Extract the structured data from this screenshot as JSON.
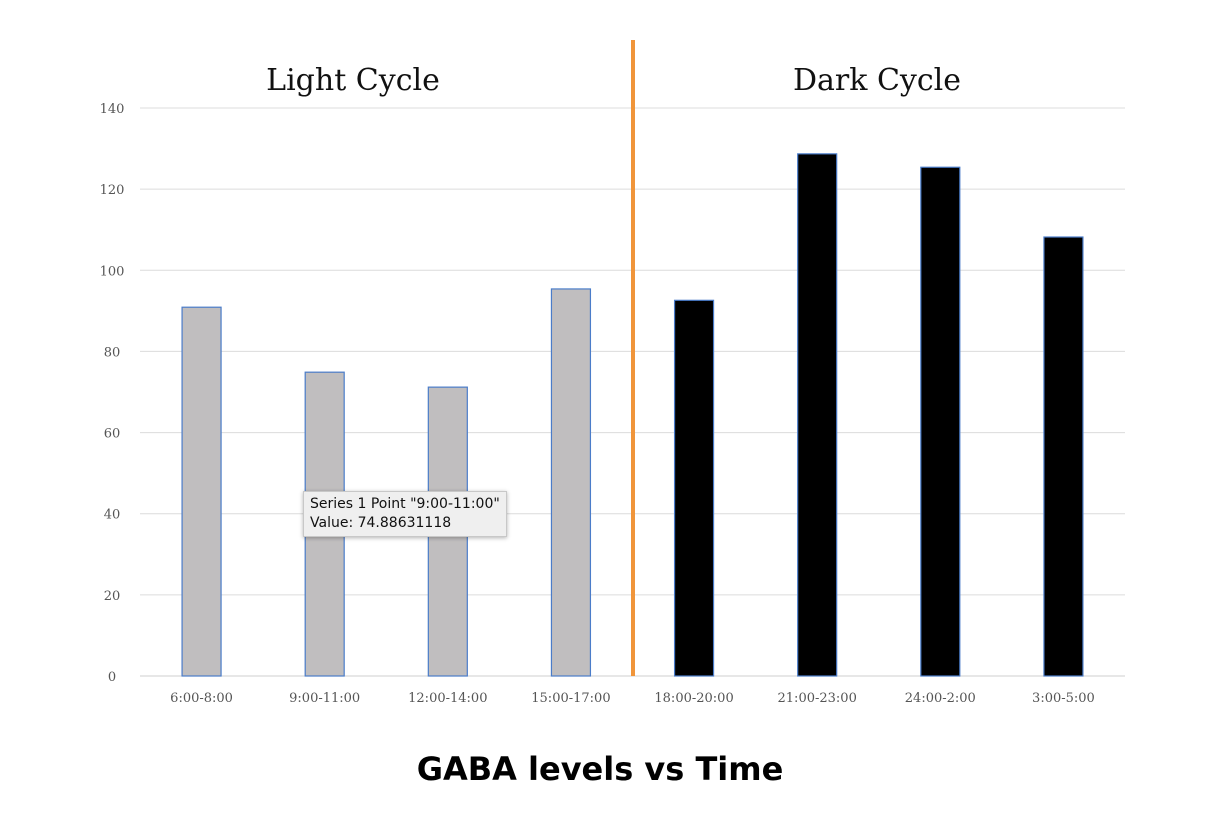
{
  "chart_data": {
    "type": "bar",
    "title": "GABA levels vs Time",
    "xlabel": "",
    "ylabel": "",
    "ylim": [
      0,
      140
    ],
    "yticks": [
      0,
      20,
      40,
      60,
      80,
      100,
      120,
      140
    ],
    "grid": true,
    "categories": [
      "6:00-8:00",
      "9:00-11:00",
      "12:00-14:00",
      "15:00-17:00",
      "18:00-20:00",
      "21:00-23:00",
      "24:00-2:00",
      "3:00-5:00"
    ],
    "values": [
      90.9,
      74.88631118,
      71.2,
      95.4,
      92.6,
      128.7,
      125.4,
      108.2
    ],
    "bar_colors": [
      "#c0bebf",
      "#c0bebf",
      "#c0bebf",
      "#c0bebf",
      "#000000",
      "#000000",
      "#000000",
      "#000000"
    ],
    "bar_border_color": "#4a7cc9",
    "divider_color": "#f0953a",
    "annotations": {
      "light": "Light Cycle",
      "dark": "Dark Cycle"
    }
  },
  "tooltip": {
    "line1": "Series 1 Point \"9:00-11:00\"",
    "line2": "Value: 74.88631118"
  }
}
